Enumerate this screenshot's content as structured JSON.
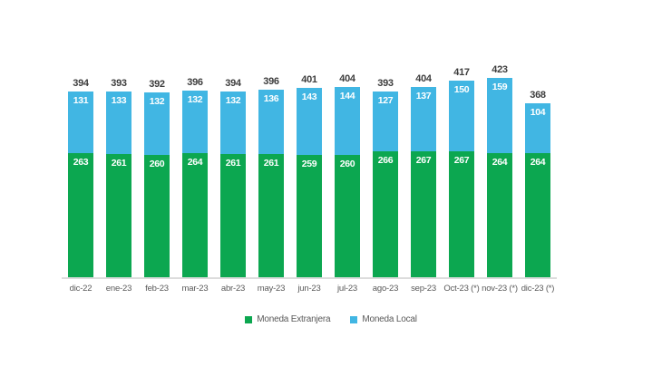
{
  "chart_data": {
    "type": "bar",
    "stacked": true,
    "title": "",
    "xlabel": "",
    "ylabel": "",
    "ylim": [
      0,
      430
    ],
    "grid": false,
    "legend_position": "bottom",
    "axis_line_color": "#dcdcdc",
    "total_label_color": "#3d3d3d",
    "segment_label_color": "#ffffff",
    "categories": [
      "dic-22",
      "ene-23",
      "feb-23",
      "mar-23",
      "abr-23",
      "may-23",
      "jun-23",
      "jul-23",
      "ago-23",
      "sep-23",
      "Oct-23 (*)",
      "nov-23 (*)",
      "dic-23 (*)"
    ],
    "series": [
      {
        "name": "Moneda Extranjera",
        "color": "#0ca750",
        "values": [
          263,
          261,
          260,
          264,
          261,
          261,
          259,
          260,
          266,
          267,
          267,
          264,
          264
        ]
      },
      {
        "name": "Moneda Local",
        "color": "#41b6e3",
        "values": [
          131,
          133,
          132,
          132,
          132,
          136,
          143,
          144,
          127,
          137,
          150,
          159,
          104
        ]
      }
    ],
    "totals": [
      394,
      393,
      392,
      396,
      394,
      396,
      401,
      404,
      393,
      404,
      417,
      423,
      368
    ]
  },
  "legend": {
    "items": [
      {
        "label": "Moneda Extranjera",
        "color": "#0ca750"
      },
      {
        "label": "Moneda Local",
        "color": "#41b6e3"
      }
    ]
  }
}
